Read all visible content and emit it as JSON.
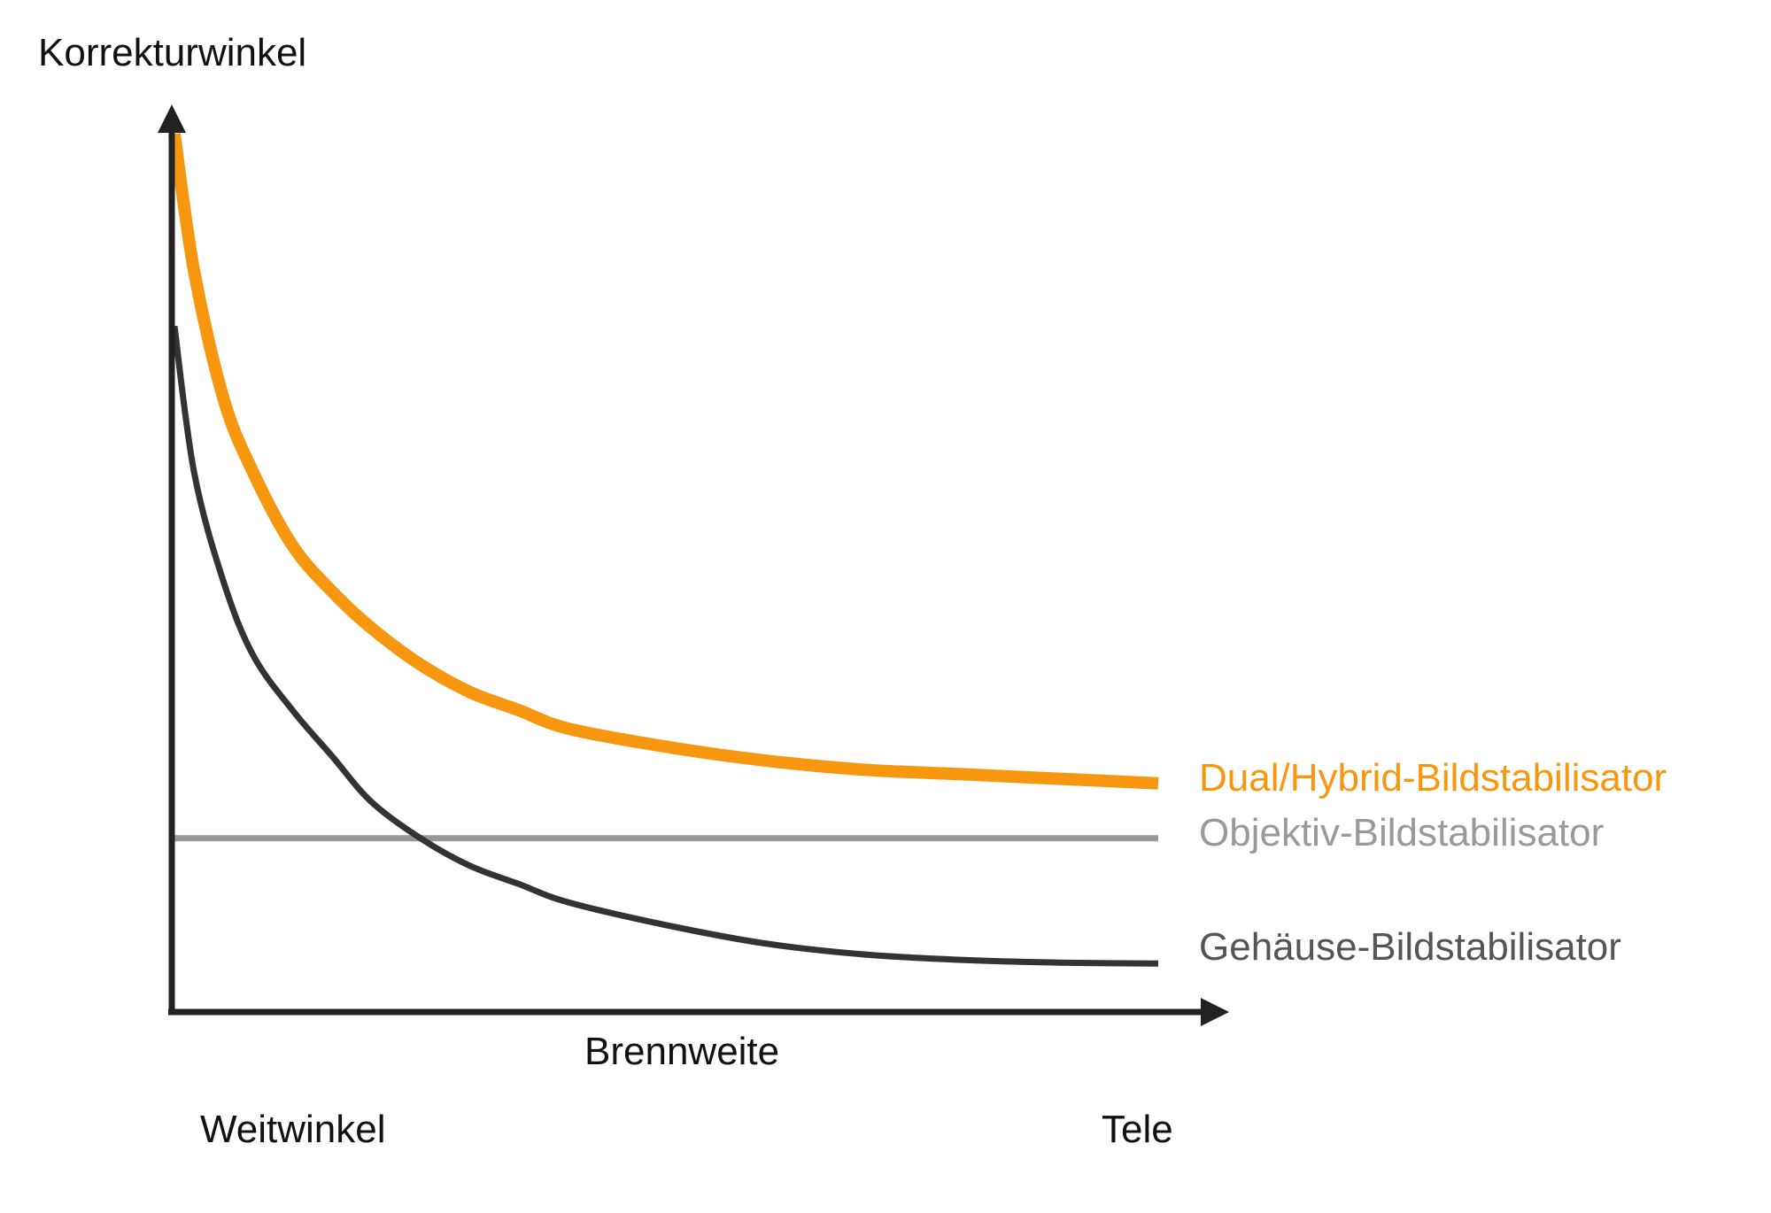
{
  "chart_data": {
    "type": "line",
    "ylabel": "Korrekturwinkel",
    "xlabel": "Brennweite",
    "x_tick_labels": [
      "Weitwinkel",
      "Tele"
    ],
    "xlim": [
      0,
      1
    ],
    "ylim": [
      0,
      1
    ],
    "grid": false,
    "legend": "inline-right",
    "series": [
      {
        "name": "Dual/Hybrid-Bildstabilisator",
        "color": "#f7960f",
        "x": [
          0,
          0.02,
          0.05,
          0.08,
          0.12,
          0.16,
          0.2,
          0.25,
          0.3,
          0.35,
          0.4,
          0.5,
          0.6,
          0.7,
          0.8,
          0.9,
          1.0
        ],
        "y": [
          0.96,
          0.81,
          0.67,
          0.59,
          0.51,
          0.46,
          0.42,
          0.38,
          0.35,
          0.33,
          0.31,
          0.29,
          0.275,
          0.265,
          0.26,
          0.255,
          0.25
        ]
      },
      {
        "name": "Objektiv-Bildstabilisator",
        "color": "#999999",
        "x": [
          0,
          1.0
        ],
        "y": [
          0.19,
          0.19
        ]
      },
      {
        "name": "Gehäuse-Bildstabilisator",
        "color": "#333333",
        "x": [
          0,
          0.02,
          0.05,
          0.08,
          0.12,
          0.16,
          0.2,
          0.25,
          0.3,
          0.35,
          0.4,
          0.5,
          0.6,
          0.7,
          0.8,
          0.9,
          1.0
        ],
        "y": [
          0.75,
          0.59,
          0.47,
          0.39,
          0.33,
          0.28,
          0.23,
          0.19,
          0.16,
          0.14,
          0.12,
          0.095,
          0.075,
          0.063,
          0.057,
          0.054,
          0.053
        ]
      }
    ]
  }
}
